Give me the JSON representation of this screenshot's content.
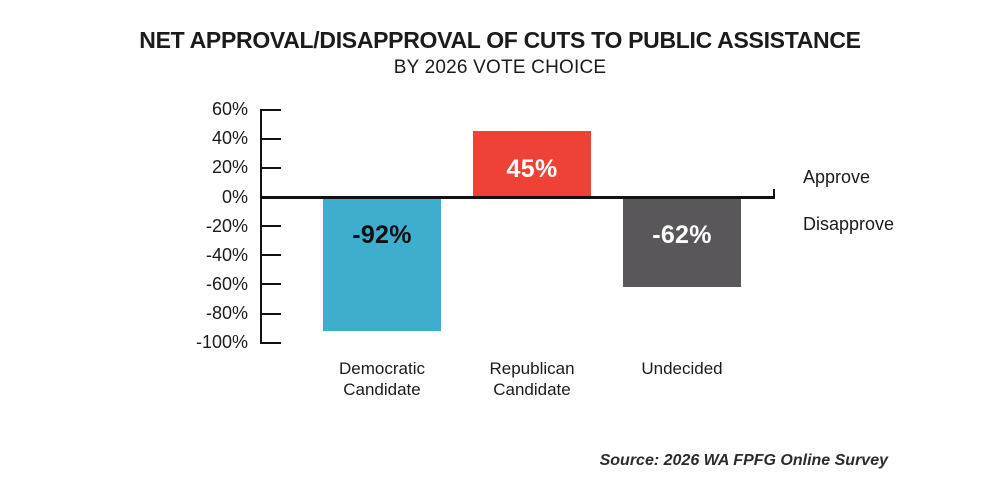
{
  "chart_data": {
    "type": "bar",
    "title": "NET APPROVAL/DISAPPROVAL OF CUTS TO PUBLIC ASSISTANCE",
    "subtitle": "BY 2026 VOTE CHOICE",
    "categories": [
      "Democratic Candidate",
      "Republican Candidate",
      "Undecided"
    ],
    "category_label_lines": [
      [
        "Democratic",
        "Candidate"
      ],
      [
        "Republican",
        "Candidate"
      ],
      [
        "Undecided"
      ]
    ],
    "values": [
      -92,
      45,
      -62
    ],
    "value_labels": [
      "-92%",
      "45%",
      "-62%"
    ],
    "bar_colors": [
      "#3fadcd",
      "#ee4237",
      "#595759"
    ],
    "value_label_colors": [
      "#111111",
      "#ffffff",
      "#ffffff"
    ],
    "ylim": [
      -100,
      60
    ],
    "yticks": [
      60,
      40,
      20,
      0,
      -20,
      -40,
      -60,
      -80,
      -100
    ],
    "ytick_labels": [
      "60%",
      "40%",
      "20%",
      "0%",
      "-20%",
      "-40%",
      "-60%",
      "-80%",
      "-100%"
    ],
    "annotations": {
      "positive_label": "Approve",
      "negative_label": "Disapprove"
    },
    "grid": false,
    "legend_position": "none",
    "xlabel": "",
    "ylabel": ""
  },
  "footer": {
    "source": "Source: 2026 WA FPFG Online Survey"
  }
}
